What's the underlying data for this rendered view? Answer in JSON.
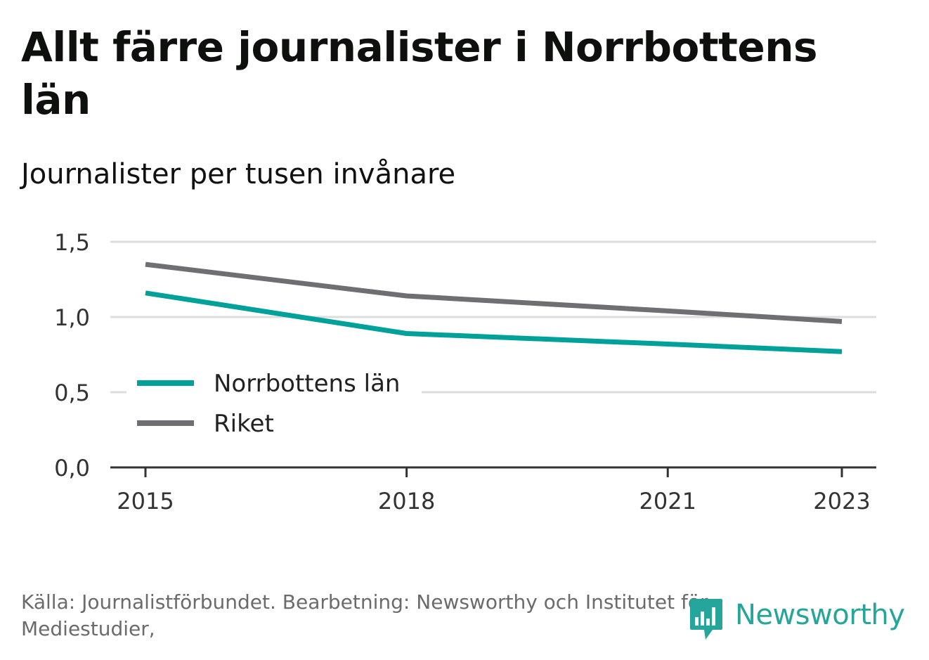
{
  "title": "Allt färre journalister i Norrbottens län",
  "subtitle": "Journalister per tusen invånare",
  "source": "Källa: Journalistförbundet. Bearbetning: Newsworthy och Institutet för Mediestudier,",
  "logo": {
    "text": "Newsworthy",
    "icon": "newsworthy-logo-icon"
  },
  "colors": {
    "norrbotten": "#00a19a",
    "riket": "#6f6e73",
    "grid": "#dddddd",
    "axis": "#333333"
  },
  "chart_data": {
    "type": "line",
    "x": [
      2015,
      2018,
      2021,
      2023
    ],
    "x_tick_labels": [
      "2015",
      "2018",
      "2021",
      "2023"
    ],
    "y_tick_labels": [
      "0,0",
      "0,5",
      "1,0",
      "1,5"
    ],
    "y_ticks": [
      0,
      0.5,
      1.0,
      1.5
    ],
    "xlim": [
      2015,
      2023
    ],
    "ylim": [
      0,
      1.5
    ],
    "grid": true,
    "legend_position": "bottom-left",
    "series": [
      {
        "name": "Norrbottens län",
        "color": "#00a19a",
        "x": [
          2015,
          2018,
          2021,
          2023
        ],
        "values": [
          1.16,
          0.89,
          0.82,
          0.77
        ]
      },
      {
        "name": "Riket",
        "color": "#6f6e73",
        "x": [
          2015,
          2018,
          2021,
          2023
        ],
        "values": [
          1.35,
          1.14,
          1.04,
          0.97
        ]
      }
    ]
  }
}
